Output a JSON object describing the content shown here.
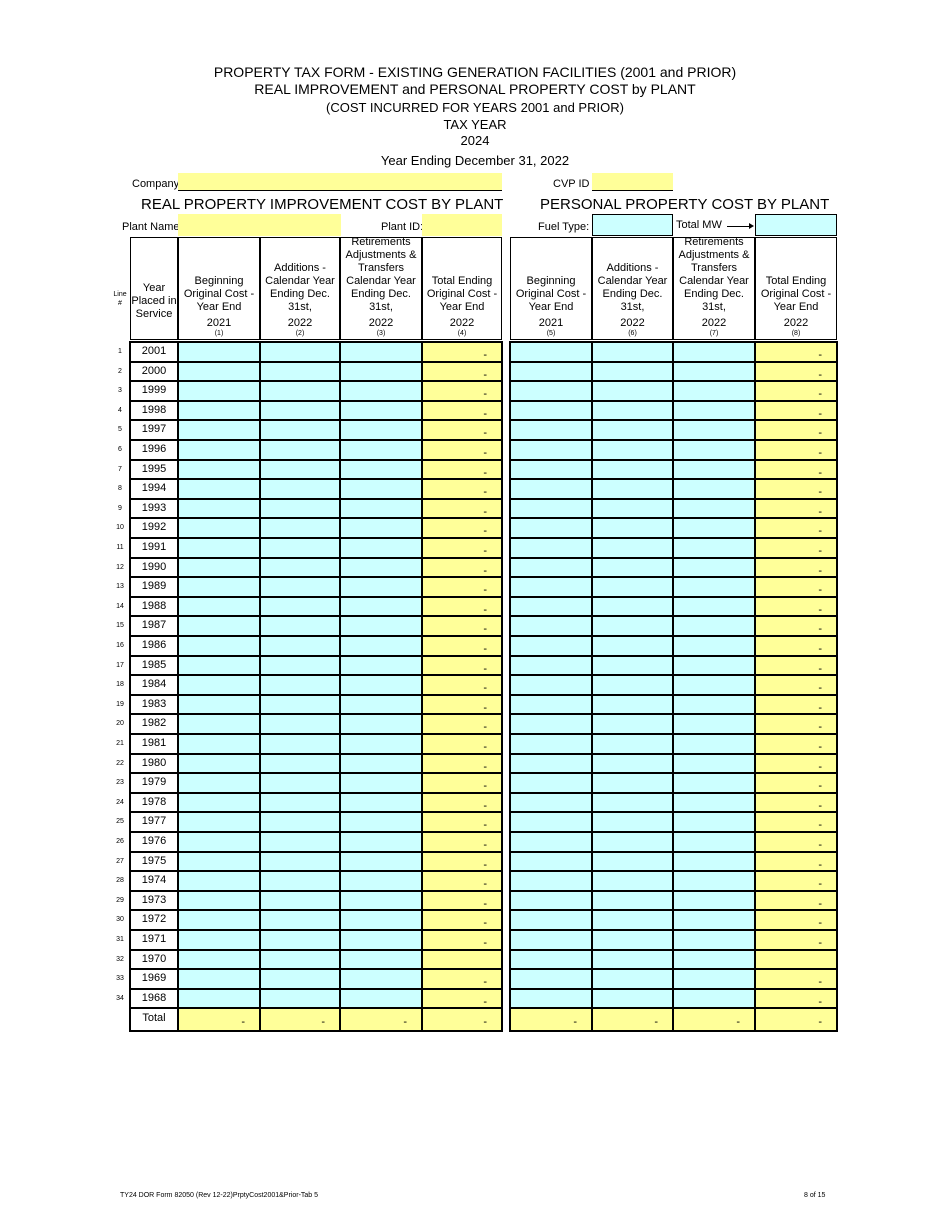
{
  "title": {
    "line1": "PROPERTY TAX FORM - EXISTING GENERATION FACILITIES (2001 and PRIOR)",
    "line2": "REAL IMPROVEMENT and PERSONAL PROPERTY COST by PLANT",
    "line3": "(COST INCURRED FOR YEARS 2001 and PRIOR)",
    "line4": "TAX YEAR",
    "line5": "2024",
    "line6": "Year Ending December 31, 2022"
  },
  "fields": {
    "company_label": "Company:",
    "company_value": "",
    "cvp_label": "CVP ID",
    "cvp_value": "",
    "plant_name_label": "Plant Name:",
    "plant_name_value": "",
    "plant_id_label": "Plant ID:",
    "plant_id_value": "",
    "fuel_type_label": "Fuel Type:",
    "fuel_type_value": "",
    "total_mw_label": "Total MW",
    "total_mw_value": ""
  },
  "sections": {
    "real": "REAL PROPERTY IMPROVEMENT COST BY PLANT",
    "personal": "PERSONAL PROPERTY COST BY PLANT"
  },
  "headers": {
    "line": [
      "Line",
      "#"
    ],
    "year": [
      "Year",
      "Placed in",
      "Service"
    ],
    "columns": [
      {
        "lines": [
          "Beginning",
          "Original Cost -",
          "Year End",
          "2021"
        ],
        "num": "(1)"
      },
      {
        "lines": [
          "Additions -",
          "Calendar Year",
          "Ending Dec. 31st,",
          "2022"
        ],
        "num": "(2)"
      },
      {
        "lines": [
          "Retirements",
          "Adjustments &",
          "Transfers",
          "Calendar Year",
          "Ending Dec. 31st,",
          "2022"
        ],
        "num": "(3)"
      },
      {
        "lines": [
          "Total Ending",
          "Original Cost -",
          "Year End",
          "2022"
        ],
        "num": "(4)"
      },
      {
        "lines": [
          "Beginning",
          "Original Cost -",
          "Year End",
          "2021"
        ],
        "num": "(5)"
      },
      {
        "lines": [
          "Additions -",
          "Calendar Year",
          "Ending Dec. 31st,",
          "2022"
        ],
        "num": "(6)"
      },
      {
        "lines": [
          "Retirements",
          "Adjustments &",
          "Transfers",
          "Calendar Year",
          "Ending Dec. 31st,",
          "2022"
        ],
        "num": "(7)"
      },
      {
        "lines": [
          "Total Ending",
          "Original Cost -",
          "Year End",
          "2022"
        ],
        "num": "(8)"
      }
    ]
  },
  "rows": [
    {
      "line": "1",
      "year": "2001",
      "c4": "-",
      "c8": "-"
    },
    {
      "line": "2",
      "year": "2000",
      "c4": "-",
      "c8": "-"
    },
    {
      "line": "3",
      "year": "1999",
      "c4": "-",
      "c8": "-"
    },
    {
      "line": "4",
      "year": "1998",
      "c4": "-",
      "c8": "-"
    },
    {
      "line": "5",
      "year": "1997",
      "c4": "-",
      "c8": "-"
    },
    {
      "line": "6",
      "year": "1996",
      "c4": "-",
      "c8": "-"
    },
    {
      "line": "7",
      "year": "1995",
      "c4": "-",
      "c8": "-"
    },
    {
      "line": "8",
      "year": "1994",
      "c4": "-",
      "c8": "-"
    },
    {
      "line": "9",
      "year": "1993",
      "c4": "-",
      "c8": "-"
    },
    {
      "line": "10",
      "year": "1992",
      "c4": "-",
      "c8": "-"
    },
    {
      "line": "11",
      "year": "1991",
      "c4": "-",
      "c8": "-"
    },
    {
      "line": "12",
      "year": "1990",
      "c4": "-",
      "c8": "-"
    },
    {
      "line": "13",
      "year": "1989",
      "c4": "-",
      "c8": "-"
    },
    {
      "line": "14",
      "year": "1988",
      "c4": "-",
      "c8": "-"
    },
    {
      "line": "15",
      "year": "1987",
      "c4": "-",
      "c8": "-"
    },
    {
      "line": "16",
      "year": "1986",
      "c4": "-",
      "c8": "-"
    },
    {
      "line": "17",
      "year": "1985",
      "c4": "-",
      "c8": "-"
    },
    {
      "line": "18",
      "year": "1984",
      "c4": "-",
      "c8": "-"
    },
    {
      "line": "19",
      "year": "1983",
      "c4": "-",
      "c8": "-"
    },
    {
      "line": "20",
      "year": "1982",
      "c4": "-",
      "c8": "-"
    },
    {
      "line": "21",
      "year": "1981",
      "c4": "-",
      "c8": "-"
    },
    {
      "line": "22",
      "year": "1980",
      "c4": "-",
      "c8": "-"
    },
    {
      "line": "23",
      "year": "1979",
      "c4": "-",
      "c8": "-"
    },
    {
      "line": "24",
      "year": "1978",
      "c4": "-",
      "c8": "-"
    },
    {
      "line": "25",
      "year": "1977",
      "c4": "-",
      "c8": "-"
    },
    {
      "line": "26",
      "year": "1976",
      "c4": "-",
      "c8": "-"
    },
    {
      "line": "27",
      "year": "1975",
      "c4": "-",
      "c8": "-"
    },
    {
      "line": "28",
      "year": "1974",
      "c4": "-",
      "c8": "-"
    },
    {
      "line": "29",
      "year": "1973",
      "c4": "-",
      "c8": "-"
    },
    {
      "line": "30",
      "year": "1972",
      "c4": "-",
      "c8": "-"
    },
    {
      "line": "31",
      "year": "1971",
      "c4": "-",
      "c8": "-"
    },
    {
      "line": "32",
      "year": "1970",
      "c4": "",
      "c8": ""
    },
    {
      "line": "33",
      "year": "1969",
      "c4": "-",
      "c8": "-"
    },
    {
      "line": "34",
      "year": "1968",
      "c4": "-",
      "c8": "-"
    }
  ],
  "total": {
    "label": "Total",
    "values": [
      "-",
      "-",
      "-",
      "-",
      "-",
      "-",
      "-",
      "-"
    ]
  },
  "footer": {
    "left": "TY24 DOR Form 82050  (Rev 12-22)PrptyCost2001&Prior-Tab 5",
    "right": "8 of 15"
  },
  "colors": {
    "input": "#ccffff",
    "calculated": "#ffff99"
  }
}
